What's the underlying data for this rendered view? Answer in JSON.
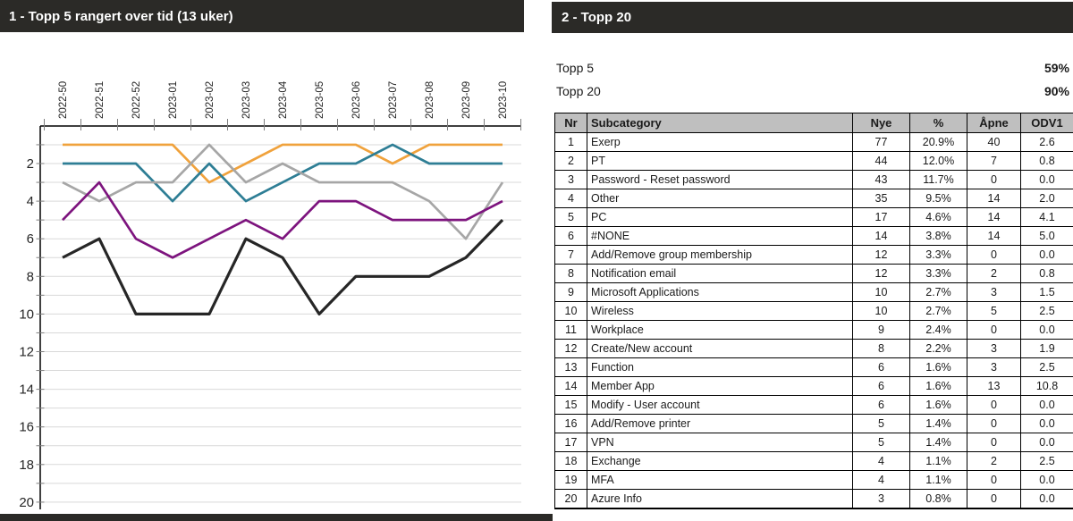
{
  "panels": {
    "chart": {
      "title": "1 - Topp 5 rangert over tid (13 uker)"
    },
    "table": {
      "title": "2 - Topp 20",
      "summary": [
        {
          "label": "Topp 5",
          "value": "59%"
        },
        {
          "label": "Topp 20",
          "value": "90%"
        }
      ],
      "columns": [
        "Nr",
        "Subcategory",
        "Nye",
        "%",
        "Åpne",
        "ODV1"
      ],
      "rows": [
        [
          "1",
          "Exerp",
          "77",
          "20.9%",
          "40",
          "2.6"
        ],
        [
          "2",
          "PT",
          "44",
          "12.0%",
          "7",
          "0.8"
        ],
        [
          "3",
          "Password - Reset password",
          "43",
          "11.7%",
          "0",
          "0.0"
        ],
        [
          "4",
          "Other",
          "35",
          "9.5%",
          "14",
          "2.0"
        ],
        [
          "5",
          "PC",
          "17",
          "4.6%",
          "14",
          "4.1"
        ],
        [
          "6",
          "#NONE",
          "14",
          "3.8%",
          "14",
          "5.0"
        ],
        [
          "7",
          "Add/Remove group membership",
          "12",
          "3.3%",
          "0",
          "0.0"
        ],
        [
          "8",
          "Notification email",
          "12",
          "3.3%",
          "2",
          "0.8"
        ],
        [
          "9",
          "Microsoft Applications",
          "10",
          "2.7%",
          "3",
          "1.5"
        ],
        [
          "10",
          "Wireless",
          "10",
          "2.7%",
          "5",
          "2.5"
        ],
        [
          "11",
          "Workplace",
          "9",
          "2.4%",
          "0",
          "0.0"
        ],
        [
          "12",
          "Create/New account",
          "8",
          "2.2%",
          "3",
          "1.9"
        ],
        [
          "13",
          "Function",
          "6",
          "1.6%",
          "3",
          "2.5"
        ],
        [
          "14",
          "Member App",
          "6",
          "1.6%",
          "13",
          "10.8"
        ],
        [
          "15",
          "Modify - User account",
          "6",
          "1.6%",
          "0",
          "0.0"
        ],
        [
          "16",
          "Add/Remove printer",
          "5",
          "1.4%",
          "0",
          "0.0"
        ],
        [
          "17",
          "VPN",
          "5",
          "1.4%",
          "0",
          "0.0"
        ],
        [
          "18",
          "Exchange",
          "4",
          "1.1%",
          "2",
          "2.5"
        ],
        [
          "19",
          "MFA",
          "4",
          "1.1%",
          "0",
          "0.0"
        ],
        [
          "20",
          "Azure Info",
          "3",
          "0.8%",
          "0",
          "0.0"
        ]
      ]
    }
  },
  "chart_data": {
    "type": "line",
    "title": "1 - Topp 5 rangert over tid (13 uker)",
    "x": [
      "2022-50",
      "2022-51",
      "2022-52",
      "2023-01",
      "2023-02",
      "2023-03",
      "2023-04",
      "2023-05",
      "2023-06",
      "2023-07",
      "2023-08",
      "2023-09",
      "2023-10"
    ],
    "series": [
      {
        "name": "orange",
        "color": "#F0A23C",
        "values": [
          1,
          1,
          1,
          1,
          3,
          2,
          1,
          1,
          1,
          2,
          1,
          1,
          1
        ]
      },
      {
        "name": "teal",
        "color": "#2E7E95",
        "values": [
          2,
          2,
          2,
          4,
          2,
          4,
          3,
          2,
          2,
          1,
          2,
          2,
          2
        ]
      },
      {
        "name": "grey",
        "color": "#A6A6A6",
        "values": [
          3,
          4,
          3,
          3,
          1,
          3,
          2,
          3,
          3,
          3,
          4,
          6,
          3
        ]
      },
      {
        "name": "purple",
        "color": "#7D147E",
        "values": [
          5,
          3,
          6,
          7,
          6,
          5,
          6,
          4,
          4,
          5,
          5,
          5,
          4
        ]
      },
      {
        "name": "black",
        "color": "#262626",
        "values": [
          7,
          6,
          10,
          10,
          10,
          6,
          7,
          10,
          8,
          8,
          8,
          7,
          5
        ]
      }
    ],
    "y_axis": {
      "min": 1,
      "max": 20,
      "inverted": true,
      "tick_labels": [
        2,
        4,
        6,
        8,
        10,
        12,
        14,
        16,
        18,
        20
      ]
    },
    "x_axis_position": "top",
    "grid": true,
    "legend": "none"
  },
  "colors": {
    "header_bar": "#2B2A27",
    "table_header_bg": "#BFBFBF",
    "gridline": "#D9D9D9",
    "axis": "#000000"
  }
}
